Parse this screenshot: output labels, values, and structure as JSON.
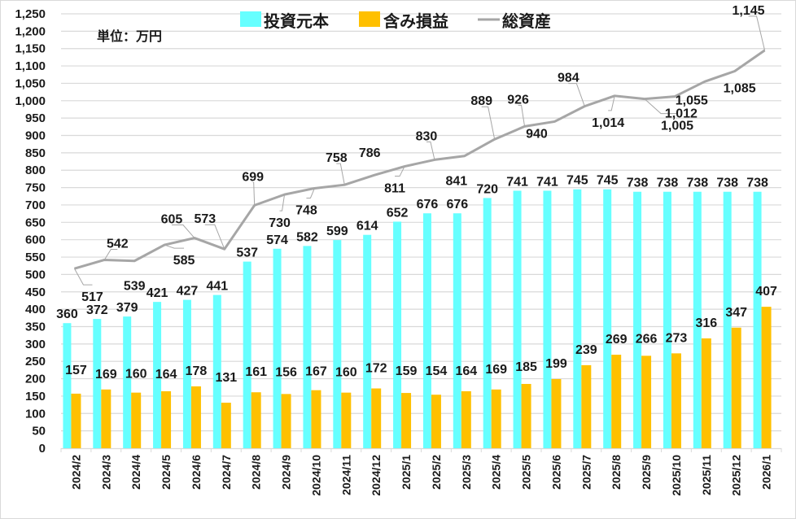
{
  "chart_data": {
    "type": "bar",
    "title": "",
    "unit_label": "単位：万円",
    "xlabel": "",
    "ylabel": "",
    "ylim": [
      0,
      1250
    ],
    "ytick_step": 50,
    "yticks": [
      "0",
      "50",
      "100",
      "150",
      "200",
      "250",
      "300",
      "350",
      "400",
      "450",
      "500",
      "550",
      "600",
      "650",
      "700",
      "750",
      "800",
      "850",
      "900",
      "950",
      "1,000",
      "1,050",
      "1,100",
      "1,150",
      "1,200",
      "1,250"
    ],
    "grid": true,
    "legend_position": "top-center",
    "categories": [
      "2024/2",
      "2024/3",
      "2024/4",
      "2024/5",
      "2024/6",
      "2024/7",
      "2024/8",
      "2024/9",
      "2024/10",
      "2024/11",
      "2024/12",
      "2025/1",
      "2025/2",
      "2025/3",
      "2025/4",
      "2025/5",
      "2025/6",
      "2025/7",
      "2025/8",
      "2025/9",
      "2025/10",
      "2025/11",
      "2025/12",
      "2026/1"
    ],
    "series": [
      {
        "name": "投資元本",
        "type": "bar",
        "color": "#66FFFF",
        "values": [
          360,
          372,
          379,
          421,
          427,
          441,
          537,
          574,
          582,
          599,
          614,
          652,
          676,
          676,
          720,
          741,
          741,
          745,
          745,
          738,
          738,
          738,
          738,
          738
        ]
      },
      {
        "name": "含み損益",
        "type": "bar",
        "color": "#FFC000",
        "values": [
          157,
          169,
          160,
          164,
          178,
          131,
          161,
          156,
          167,
          160,
          172,
          159,
          154,
          164,
          169,
          185,
          199,
          239,
          269,
          266,
          273,
          316,
          347,
          407
        ]
      },
      {
        "name": "総資産",
        "type": "line",
        "color": "#A6A6A6",
        "values": [
          517,
          542,
          539,
          585,
          605,
          573,
          699,
          730,
          748,
          758,
          786,
          811,
          830,
          841,
          889,
          926,
          940,
          984,
          1014,
          1005,
          1012,
          1055,
          1085,
          1145
        ],
        "labels": [
          "517",
          "542",
          "539",
          "585",
          "605",
          "573",
          "699",
          "730",
          "748",
          "758",
          "786",
          "811",
          "830",
          "841",
          "889",
          "926",
          "940",
          "984",
          "1,014",
          "1,005",
          "1,012",
          "1,055",
          "1,085",
          "1,145"
        ]
      }
    ]
  }
}
